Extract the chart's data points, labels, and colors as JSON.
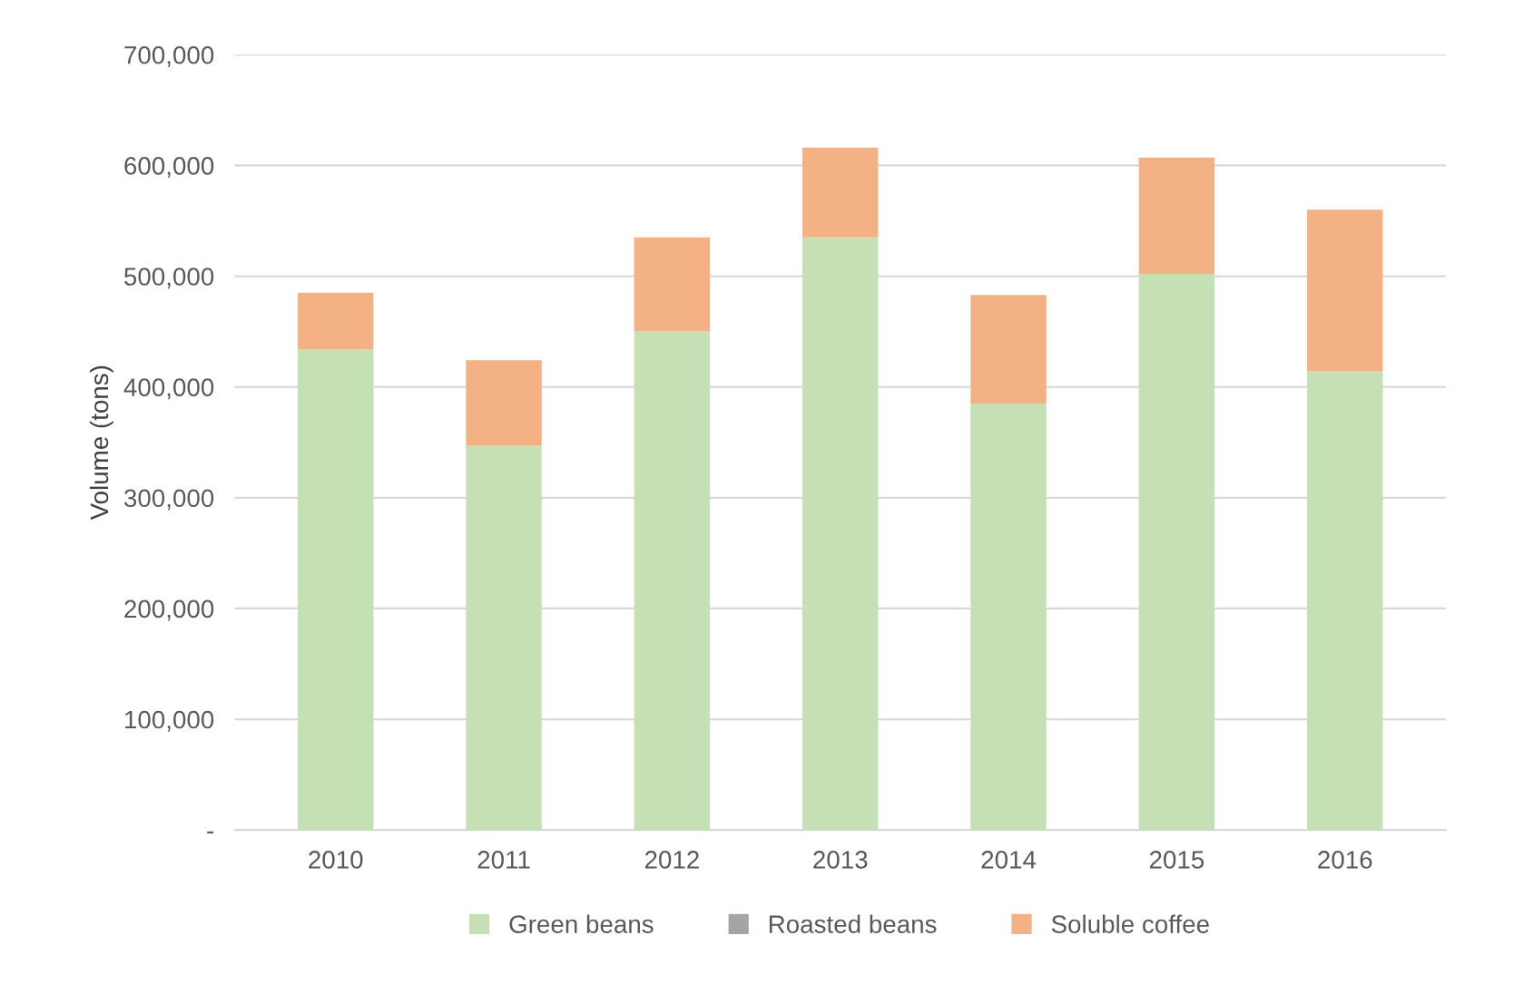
{
  "chart_data": {
    "type": "bar",
    "stacked": true,
    "ylabel": "Volume (tons)",
    "categories": [
      "2010",
      "2011",
      "2012",
      "2013",
      "2014",
      "2015",
      "2016"
    ],
    "series": [
      {
        "name": "Green beans",
        "color": "#c5e0b4",
        "values": [
          434000,
          347000,
          450000,
          535000,
          385000,
          502000,
          414000
        ]
      },
      {
        "name": "Roasted beans",
        "color": "#a5a5a5",
        "values": [
          0,
          0,
          0,
          0,
          0,
          0,
          0
        ]
      },
      {
        "name": "Soluble coffee",
        "color": "#f4b183",
        "values": [
          51000,
          77000,
          85000,
          81000,
          98000,
          105000,
          146000
        ]
      }
    ],
    "ylim": [
      0,
      700000
    ],
    "yticks": [
      {
        "value": 0,
        "label": "-"
      },
      {
        "value": 100000,
        "label": "100,000"
      },
      {
        "value": 200000,
        "label": "200,000"
      },
      {
        "value": 300000,
        "label": "300,000"
      },
      {
        "value": 400000,
        "label": "400,000"
      },
      {
        "value": 500000,
        "label": "500,000"
      },
      {
        "value": 600000,
        "label": "600,000"
      },
      {
        "value": 700000,
        "label": "700,000"
      }
    ],
    "grid": "y",
    "legend": "bottom"
  }
}
